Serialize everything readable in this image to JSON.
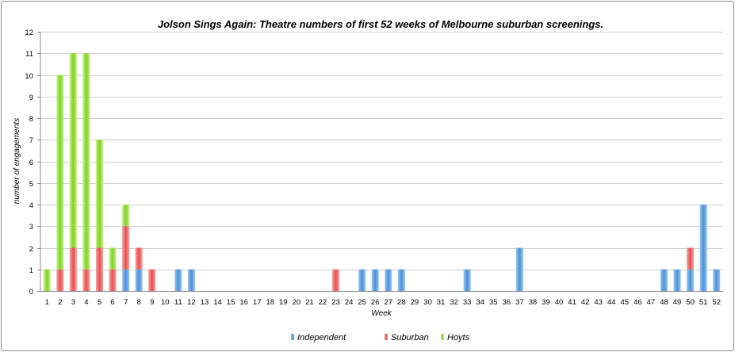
{
  "chart_data": {
    "type": "bar",
    "stacked": true,
    "title": "Jolson Sings Again: Theatre numbers of first 52 weeks of Melbourne suburban screenings.",
    "xlabel": "Week",
    "ylabel": "number of engagements",
    "ylim": [
      0,
      12
    ],
    "grid": true,
    "legend_position": "bottom",
    "categories": [
      "1",
      "2",
      "3",
      "4",
      "5",
      "6",
      "7",
      "8",
      "9",
      "10",
      "11",
      "12",
      "13",
      "14",
      "15",
      "16",
      "17",
      "18",
      "19",
      "20",
      "21",
      "22",
      "23",
      "24",
      "25",
      "26",
      "27",
      "28",
      "29",
      "30",
      "31",
      "32",
      "33",
      "34",
      "35",
      "36",
      "37",
      "38",
      "39",
      "40",
      "41",
      "42",
      "43",
      "44",
      "45",
      "46",
      "47",
      "48",
      "49",
      "50",
      "51",
      "52"
    ],
    "series": [
      {
        "name": "Independent",
        "color": "#4a90d9",
        "values": [
          0,
          0,
          0,
          0,
          0,
          0,
          1,
          1,
          0,
          0,
          1,
          1,
          0,
          0,
          0,
          0,
          0,
          0,
          0,
          0,
          0,
          0,
          0,
          0,
          1,
          1,
          1,
          1,
          0,
          0,
          0,
          0,
          1,
          0,
          0,
          0,
          2,
          0,
          0,
          0,
          0,
          0,
          0,
          0,
          0,
          0,
          0,
          1,
          1,
          1,
          4,
          1
        ]
      },
      {
        "name": "Suburban",
        "color": "#e8504f",
        "values": [
          0,
          1,
          2,
          1,
          2,
          1,
          2,
          1,
          1,
          0,
          0,
          0,
          0,
          0,
          0,
          0,
          0,
          0,
          0,
          0,
          0,
          0,
          1,
          0,
          0,
          0,
          0,
          0,
          0,
          0,
          0,
          0,
          0,
          0,
          0,
          0,
          0,
          0,
          0,
          0,
          0,
          0,
          0,
          0,
          0,
          0,
          0,
          0,
          0,
          1,
          0,
          0
        ]
      },
      {
        "name": "Hoyts",
        "color": "#7ed321",
        "values": [
          1,
          9,
          9,
          10,
          5,
          1,
          1,
          0,
          0,
          0,
          0,
          0,
          0,
          0,
          0,
          0,
          0,
          0,
          0,
          0,
          0,
          0,
          0,
          0,
          0,
          0,
          0,
          0,
          0,
          0,
          0,
          0,
          0,
          0,
          0,
          0,
          0,
          0,
          0,
          0,
          0,
          0,
          0,
          0,
          0,
          0,
          0,
          0,
          0,
          0,
          0,
          0
        ]
      }
    ]
  }
}
